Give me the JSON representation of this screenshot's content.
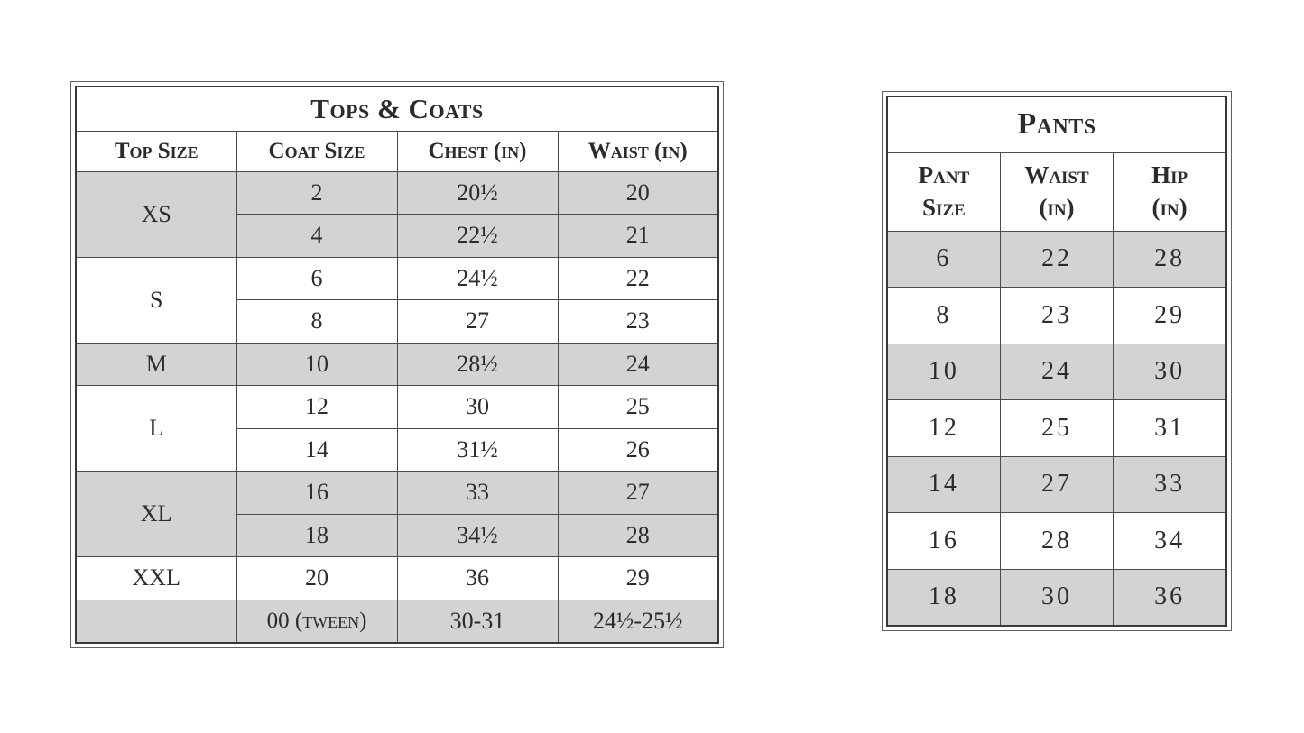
{
  "page": {
    "background_color": "#ffffff",
    "text_color": "#2b2a2c",
    "shade_color": "#d3d3d5",
    "border_color": "#39393b"
  },
  "tops_coats_table": {
    "title": "Tops & Coats",
    "columns": [
      "Top Size",
      "Coat Size",
      "Chest (in)",
      "Waist (in)"
    ],
    "groups": [
      {
        "top_size": "XS",
        "shaded": true,
        "rows": [
          [
            "2",
            "20½",
            "20"
          ],
          [
            "4",
            "22½",
            "21"
          ]
        ]
      },
      {
        "top_size": "S",
        "shaded": false,
        "rows": [
          [
            "6",
            "24½",
            "22"
          ],
          [
            "8",
            "27",
            "23"
          ]
        ]
      },
      {
        "top_size": "M",
        "shaded": true,
        "rows": [
          [
            "10",
            "28½",
            "24"
          ]
        ]
      },
      {
        "top_size": "L",
        "shaded": false,
        "rows": [
          [
            "12",
            "30",
            "25"
          ],
          [
            "14",
            "31½",
            "26"
          ]
        ]
      },
      {
        "top_size": "XL",
        "shaded": true,
        "rows": [
          [
            "16",
            "33",
            "27"
          ],
          [
            "18",
            "34½",
            "28"
          ]
        ]
      },
      {
        "top_size": "XXL",
        "shaded": false,
        "rows": [
          [
            "20",
            "36",
            "29"
          ]
        ]
      },
      {
        "top_size": "",
        "shaded": true,
        "rows": [
          [
            "00 (tween)",
            "30-31",
            "24½-25½"
          ]
        ]
      }
    ]
  },
  "pants_table": {
    "title": "Pants",
    "columns": [
      {
        "line1": "Pant",
        "line2": "Size"
      },
      {
        "line1": "Waist",
        "line2": "(in)"
      },
      {
        "line1": "Hip",
        "line2": "(in)"
      }
    ],
    "rows": [
      {
        "shaded": true,
        "cells": [
          "6",
          "22",
          "28"
        ]
      },
      {
        "shaded": false,
        "cells": [
          "8",
          "23",
          "29"
        ]
      },
      {
        "shaded": true,
        "cells": [
          "10",
          "24",
          "30"
        ]
      },
      {
        "shaded": false,
        "cells": [
          "12",
          "25",
          "31"
        ]
      },
      {
        "shaded": true,
        "cells": [
          "14",
          "27",
          "33"
        ]
      },
      {
        "shaded": false,
        "cells": [
          "16",
          "28",
          "34"
        ]
      },
      {
        "shaded": true,
        "cells": [
          "18",
          "30",
          "36"
        ]
      }
    ]
  }
}
